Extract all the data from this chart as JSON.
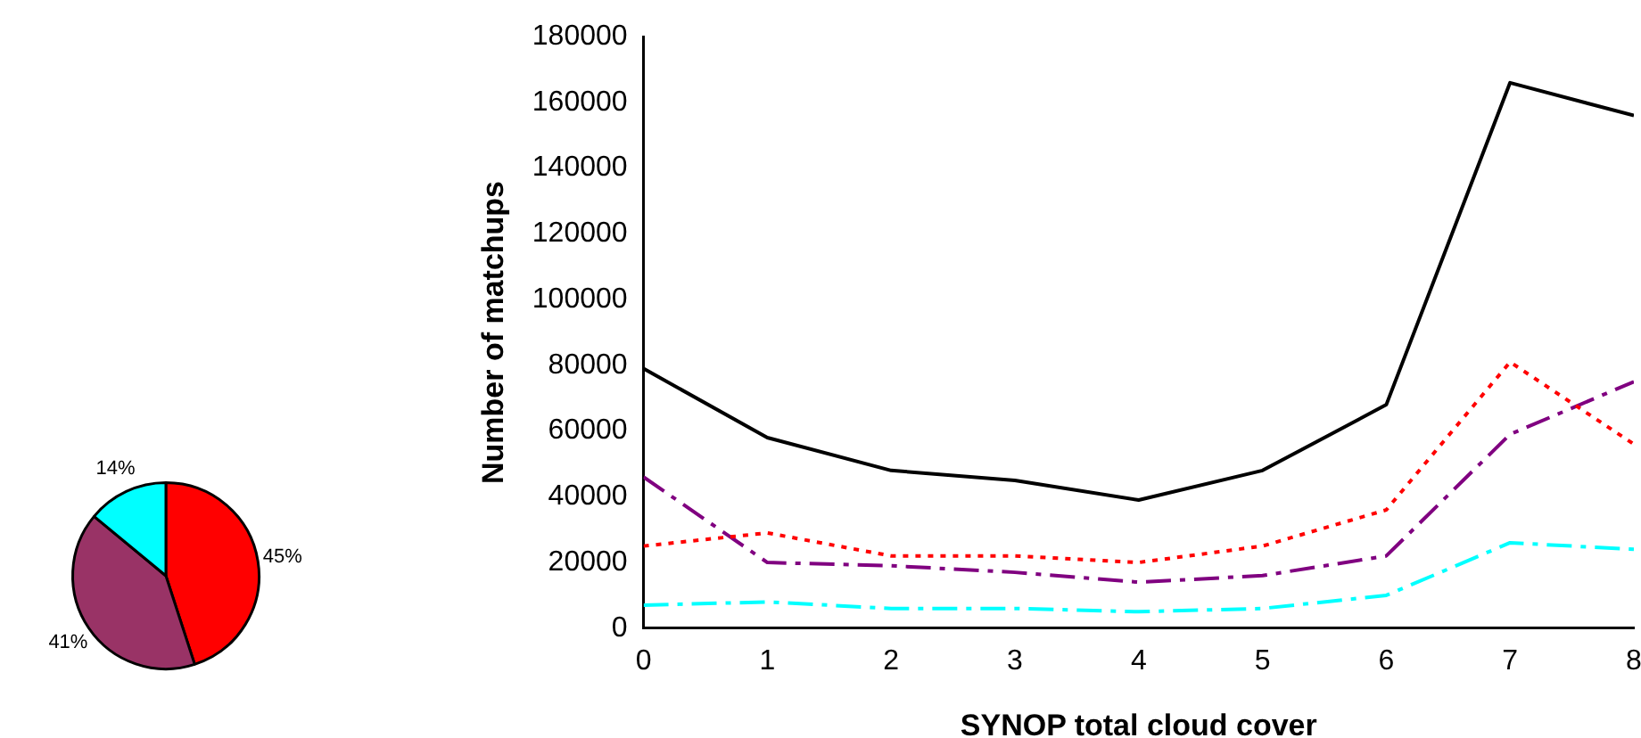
{
  "chart_data": [
    {
      "type": "pie",
      "categories": [
        null,
        null,
        null
      ],
      "values": [
        45,
        41,
        14
      ],
      "colors": [
        "#ff0000",
        "#993366",
        "#00ffff"
      ],
      "value_labels": [
        "45%",
        "41%",
        "14%"
      ],
      "legend": false
    },
    {
      "type": "line",
      "xlabel": "SYNOP total cloud cover",
      "ylabel": "Number of matchups",
      "x": [
        0,
        1,
        2,
        3,
        4,
        5,
        6,
        7,
        8
      ],
      "xlim": [
        0,
        8
      ],
      "xticks": [
        0,
        1,
        2,
        3,
        4,
        5,
        6,
        7,
        8
      ],
      "ylim": [
        0,
        180000
      ],
      "yticks": [
        0,
        20000,
        40000,
        60000,
        80000,
        100000,
        120000,
        140000,
        160000,
        180000
      ],
      "grid": false,
      "legend": false,
      "marker": "none",
      "series": [
        {
          "color": "#000000",
          "line_style": "solid",
          "values": [
            79000,
            58000,
            48000,
            45000,
            39000,
            48000,
            68000,
            166000,
            156000
          ]
        },
        {
          "color": "#ff0000",
          "line_style": "dotted",
          "values": [
            25000,
            29000,
            22000,
            22000,
            20000,
            25000,
            36000,
            81000,
            56000
          ]
        },
        {
          "color": "#800080",
          "line_style": "dashed",
          "values": [
            46000,
            20000,
            19000,
            17000,
            14000,
            16000,
            22000,
            59000,
            75000
          ]
        },
        {
          "color": "#00ffff",
          "line_style": "dashed",
          "values": [
            7000,
            8000,
            6000,
            6000,
            5000,
            6000,
            10000,
            26000,
            24000
          ]
        }
      ]
    }
  ]
}
